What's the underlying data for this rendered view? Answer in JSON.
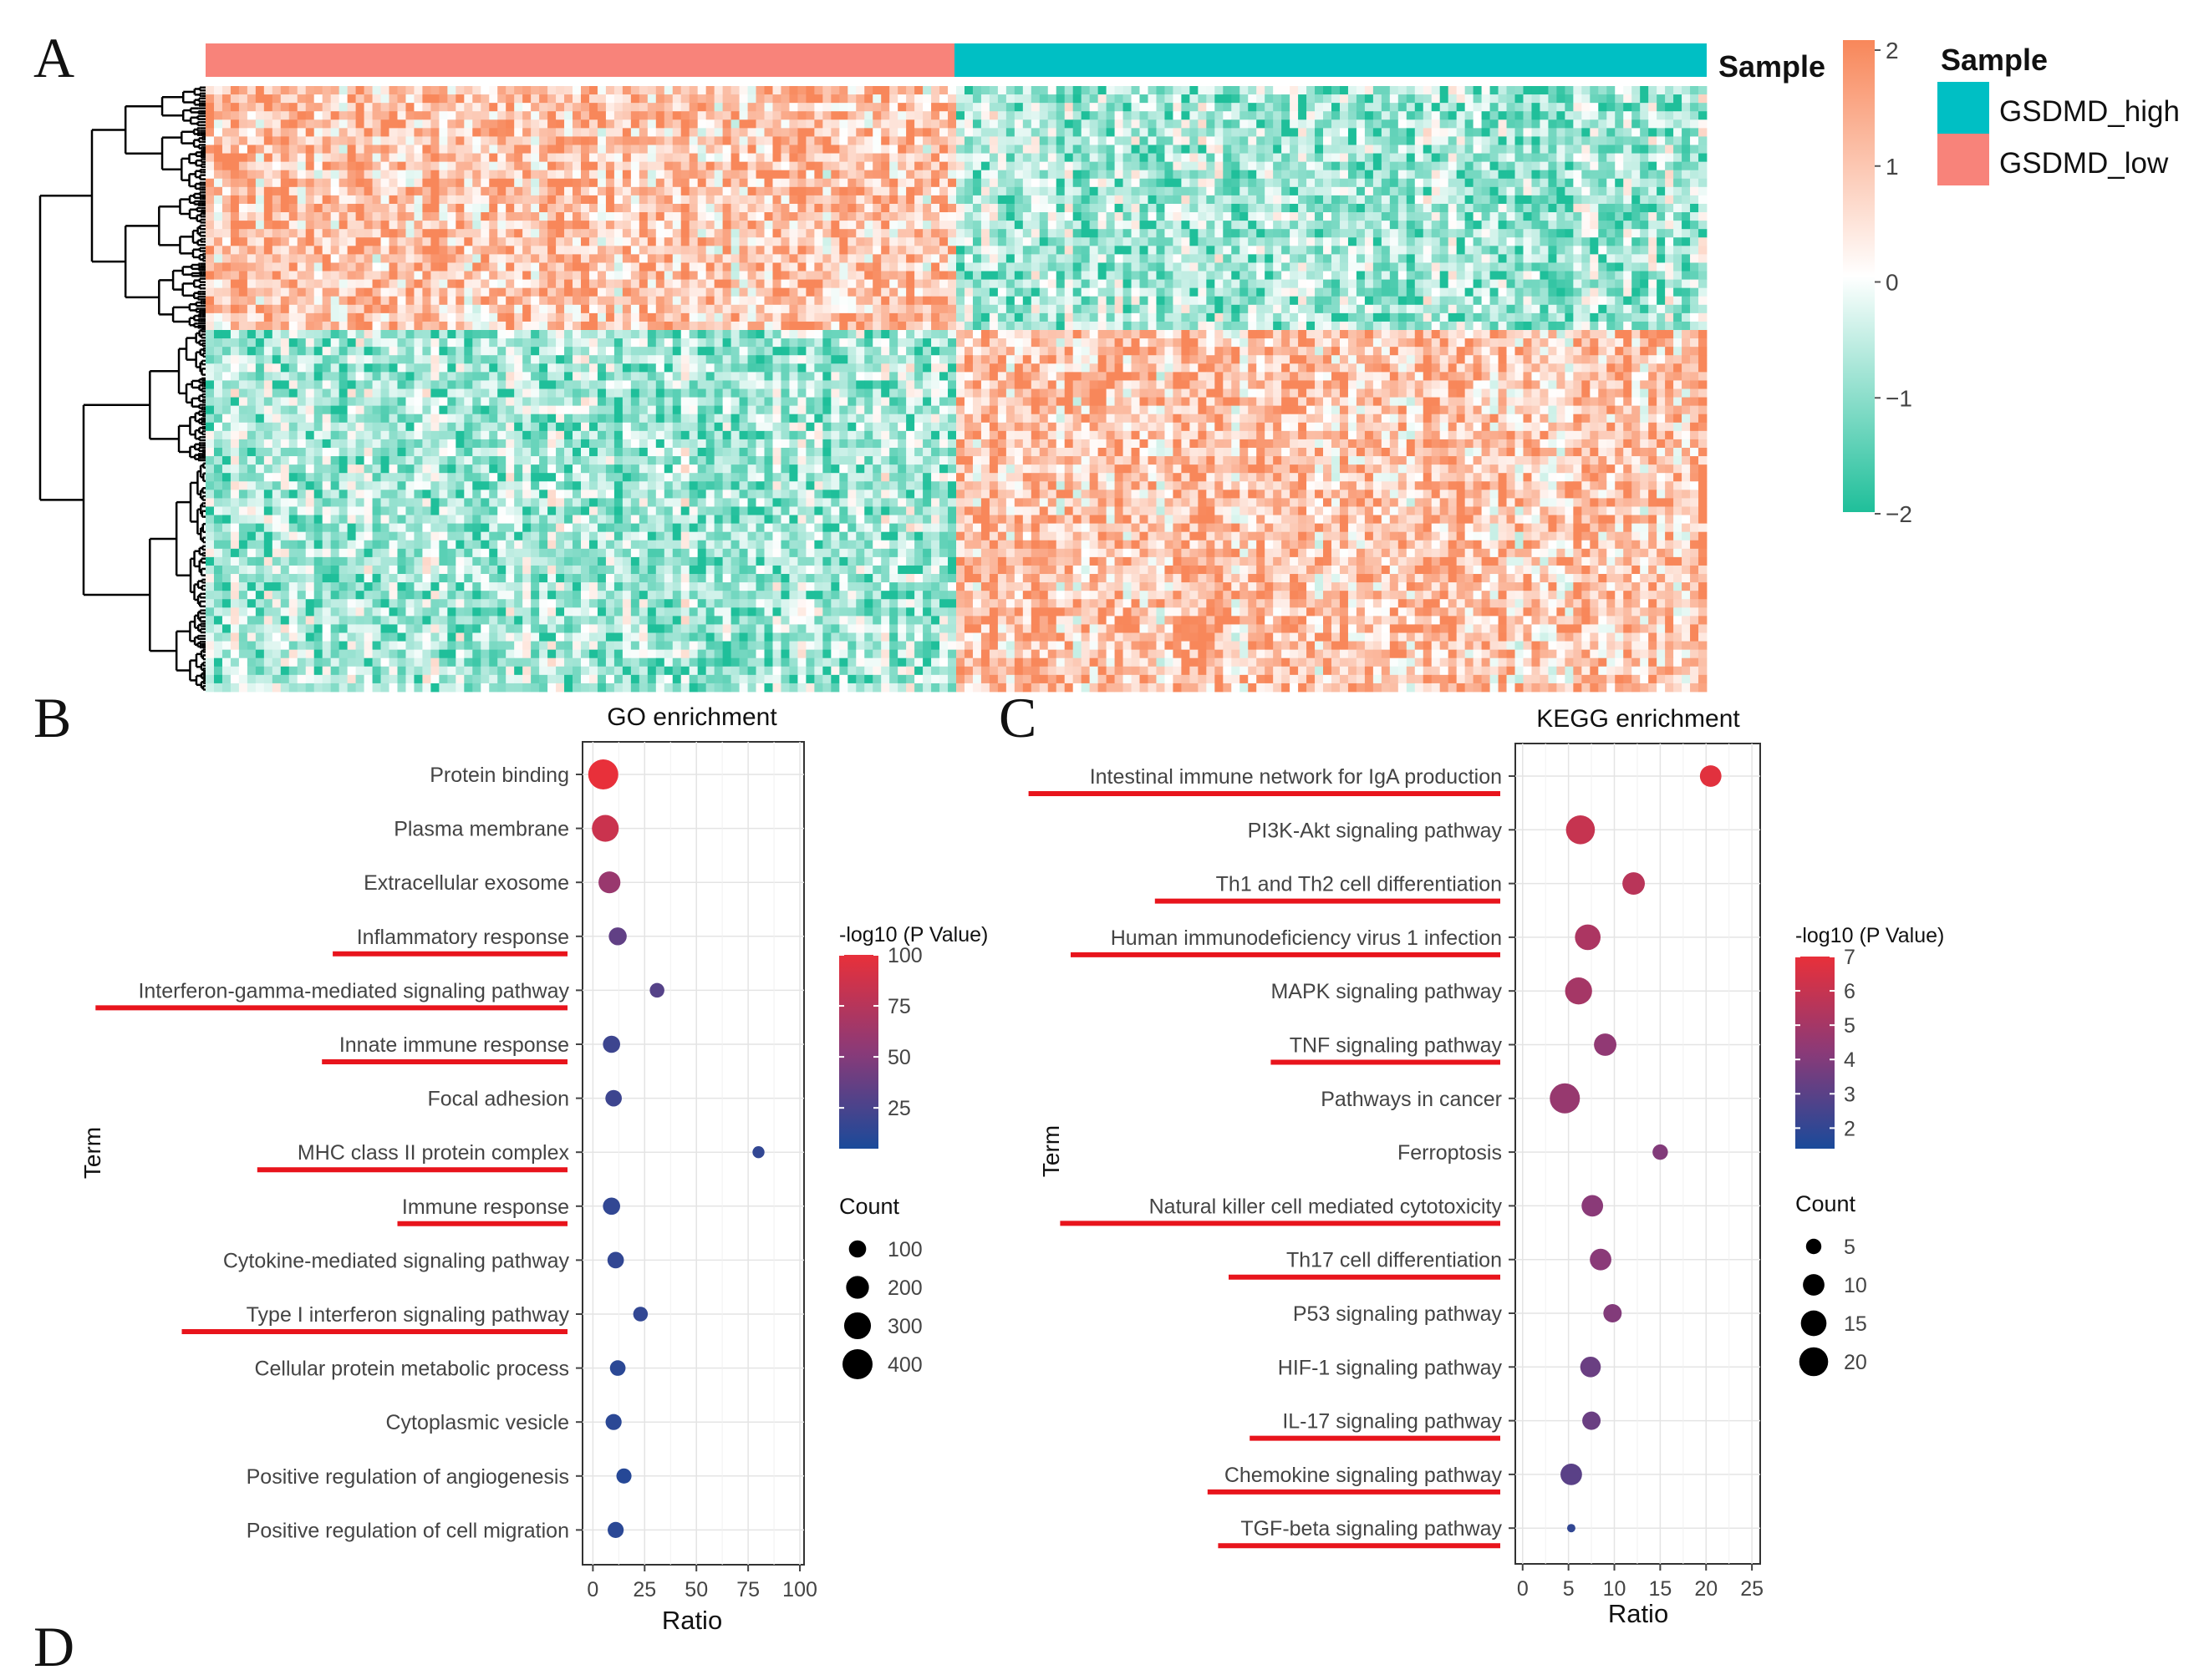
{
  "panels": {
    "a": "A",
    "b": "B",
    "c": "C",
    "d": "D"
  },
  "heatmap": {
    "annotation_label": "Sample",
    "legend_title": "Sample",
    "legend_items": [
      {
        "label": "GSDMD_high",
        "color": "#00bfc4"
      },
      {
        "label": "GSDMD_low",
        "color": "#f8837a"
      }
    ],
    "colorbar_ticks": [
      "2",
      "1",
      "0",
      "−1",
      "−2"
    ],
    "colors": {
      "high": "#f8875a",
      "mid": "#ffffff",
      "low": "#1fbf9a"
    }
  },
  "chart_data": [
    {
      "type": "scatter",
      "title": "GO enrichment",
      "xlabel": "Ratio",
      "ylabel": "Term",
      "xlim": [
        -5,
        102
      ],
      "xticks": [
        "0",
        "25",
        "50",
        "75",
        "100"
      ],
      "color_legend_title": "-log10 (P Value)",
      "color_ticks": [
        "100",
        "75",
        "50",
        "25"
      ],
      "color_range": [
        5,
        100
      ],
      "size_legend_title": "Count",
      "size_ticks": [
        "100",
        "200",
        "300",
        "400"
      ],
      "terms": [
        "Protein binding",
        "Plasma membrane",
        "Extracellular exosome",
        "Inflammatory response",
        "Interferon-gamma-mediated signaling pathway",
        "Innate immune response",
        "Focal adhesion",
        "MHC class II protein complex",
        "Immune response",
        "Cytokine-mediated signaling pathway",
        "Type I interferon signaling pathway",
        "Cellular protein metabolic process",
        "Cytoplasmic vesicle",
        "Positive regulation of angiogenesis",
        "Positive regulation of cell migration"
      ],
      "underlined": [
        false,
        false,
        false,
        true,
        true,
        true,
        false,
        true,
        true,
        false,
        true,
        false,
        false,
        false,
        false
      ],
      "ratio": [
        5,
        6,
        8,
        12,
        31,
        9,
        10,
        80,
        9,
        11,
        23,
        12,
        10,
        15,
        11
      ],
      "count": [
        400,
        300,
        180,
        110,
        70,
        100,
        90,
        50,
        100,
        90,
        70,
        80,
        85,
        75,
        85
      ],
      "neglog10p": [
        100,
        85,
        60,
        35,
        30,
        20,
        20,
        15,
        15,
        15,
        15,
        12,
        12,
        10,
        12
      ]
    },
    {
      "type": "scatter",
      "title": "KEGG enrichment",
      "xlabel": "Ratio",
      "ylabel": "Term",
      "xlim": [
        -0.8,
        25.9
      ],
      "xticks": [
        "0",
        "5",
        "10",
        "15",
        "20",
        "25"
      ],
      "color_legend_title": "-log10 (P Value)",
      "color_ticks": [
        "7",
        "6",
        "5",
        "4",
        "3",
        "2"
      ],
      "color_range": [
        1.4,
        7
      ],
      "size_legend_title": "Count",
      "size_ticks": [
        "5",
        "10",
        "15",
        "20"
      ],
      "terms": [
        "Intestinal immune network for IgA production",
        "PI3K-Akt signaling pathway",
        "Th1 and Th2 cell differentiation",
        "Human immunodeficiency virus 1 infection",
        "MAPK signaling pathway",
        "TNF signaling pathway",
        "Pathways in cancer",
        "Ferroptosis",
        "Natural killer cell mediated cytotoxicity",
        "Th17 cell differentiation",
        "P53 signaling pathway",
        "HIF-1 signaling pathway",
        "IL-17 signaling pathway",
        "Chemokine signaling pathway",
        "TGF-beta signaling pathway"
      ],
      "underlined": [
        true,
        false,
        true,
        true,
        false,
        true,
        false,
        false,
        true,
        true,
        false,
        false,
        true,
        true,
        true
      ],
      "ratio": [
        20.5,
        6.3,
        12.1,
        7.1,
        6.1,
        9,
        4.6,
        15,
        7.6,
        8.5,
        9.8,
        7.4,
        7.5,
        5.3,
        5.3
      ],
      "count": [
        10,
        20,
        11,
        15,
        17,
        11,
        22,
        5,
        10,
        10,
        7,
        9,
        7,
        10,
        3
      ],
      "neglog10p": [
        6.8,
        6,
        5.6,
        5.2,
        5,
        4.4,
        4.6,
        4,
        4.2,
        4.2,
        4,
        3.4,
        3.4,
        3,
        2
      ]
    }
  ]
}
